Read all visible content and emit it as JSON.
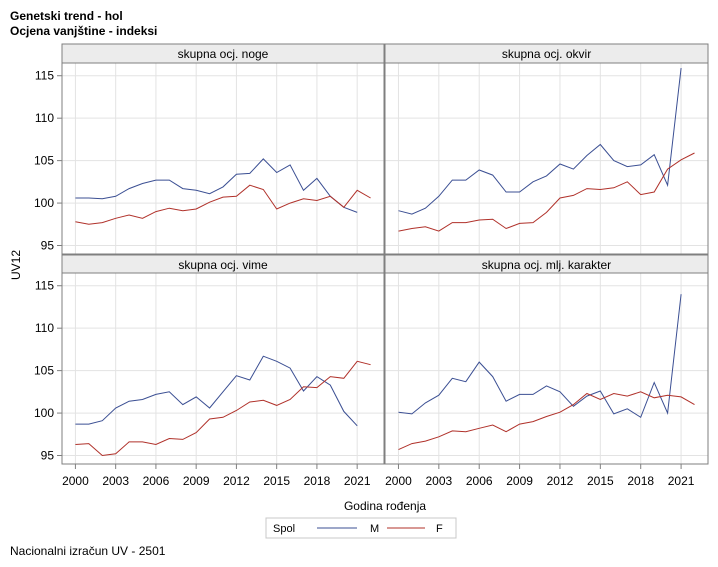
{
  "title_line1": "Genetski trend - hol",
  "title_line2": "Ocjena vanjštine - indeksi",
  "footnote": "Nacionalni izračun UV - 2501",
  "colors": {
    "M": "#3b4f93",
    "F": "#b0312a",
    "frame": "#7f7f7f",
    "grid": "#e3e3e3",
    "header_bg": "#ececec"
  },
  "chart_data": {
    "type": "line",
    "layout": "2x2 panel",
    "xlabel": "Godina rođenja",
    "ylabel": "UV12",
    "x_ticks": [
      2000,
      2003,
      2006,
      2009,
      2012,
      2015,
      2018,
      2021
    ],
    "y_ticks": [
      95,
      100,
      105,
      110,
      115
    ],
    "xlim": [
      1999,
      2023
    ],
    "ylim": [
      94,
      116.5
    ],
    "grid": true,
    "legend": {
      "title": "Spol",
      "position": "bottom-center",
      "entries": [
        "M",
        "F"
      ]
    },
    "x": [
      2000,
      2001,
      2002,
      2003,
      2004,
      2005,
      2006,
      2007,
      2008,
      2009,
      2010,
      2011,
      2012,
      2013,
      2014,
      2015,
      2016,
      2017,
      2018,
      2019,
      2020,
      2021,
      2022
    ],
    "panels": [
      {
        "title": "skupna ocj. noge",
        "series": [
          {
            "name": "M",
            "values": [
              100.6,
              100.6,
              100.5,
              100.8,
              101.7,
              102.3,
              102.7,
              102.7,
              101.7,
              101.5,
              101.1,
              101.9,
              103.4,
              103.5,
              105.2,
              103.6,
              104.5,
              101.5,
              102.9,
              100.8,
              99.5,
              98.9,
              null
            ]
          },
          {
            "name": "F",
            "values": [
              97.8,
              97.5,
              97.7,
              98.2,
              98.6,
              98.2,
              99.0,
              99.4,
              99.1,
              99.3,
              100.1,
              100.7,
              100.8,
              102.1,
              101.6,
              99.3,
              100.0,
              100.5,
              100.3,
              100.8,
              99.5,
              101.5,
              100.6
            ]
          }
        ]
      },
      {
        "title": "skupna ocj. okvir",
        "series": [
          {
            "name": "M",
            "values": [
              99.1,
              98.7,
              99.4,
              100.8,
              102.7,
              102.7,
              103.9,
              103.3,
              101.3,
              101.3,
              102.5,
              103.2,
              104.6,
              104.0,
              105.6,
              106.9,
              105.0,
              104.3,
              104.5,
              105.7,
              102.1,
              115.9,
              null
            ]
          },
          {
            "name": "F",
            "values": [
              96.7,
              97.0,
              97.2,
              96.7,
              97.7,
              97.7,
              98.0,
              98.1,
              97.0,
              97.6,
              97.7,
              98.9,
              100.6,
              100.9,
              101.7,
              101.6,
              101.8,
              102.5,
              101.0,
              101.3,
              104.0,
              105.1,
              105.9
            ]
          }
        ]
      },
      {
        "title": "skupna ocj. vime",
        "series": [
          {
            "name": "M",
            "values": [
              98.7,
              98.7,
              99.1,
              100.6,
              101.4,
              101.6,
              102.2,
              102.5,
              101.0,
              101.9,
              100.6,
              102.5,
              104.4,
              103.9,
              106.7,
              106.1,
              105.3,
              102.6,
              104.3,
              103.3,
              100.2,
              98.5,
              null
            ]
          },
          {
            "name": "F",
            "values": [
              96.3,
              96.4,
              95.0,
              95.2,
              96.6,
              96.6,
              96.3,
              97.0,
              96.9,
              97.7,
              99.3,
              99.5,
              100.3,
              101.3,
              101.5,
              100.9,
              101.6,
              103.1,
              103.0,
              104.3,
              104.1,
              106.1,
              105.7
            ]
          }
        ]
      },
      {
        "title": "skupna ocj. mlj. karakter",
        "series": [
          {
            "name": "M",
            "values": [
              100.1,
              99.9,
              101.2,
              102.1,
              104.1,
              103.7,
              106.0,
              104.3,
              101.4,
              102.2,
              102.2,
              103.2,
              102.5,
              100.8,
              102.0,
              102.6,
              99.9,
              100.5,
              99.5,
              103.6,
              100.0,
              114.0,
              null
            ]
          },
          {
            "name": "F",
            "values": [
              95.7,
              96.4,
              96.7,
              97.2,
              97.9,
              97.8,
              98.2,
              98.6,
              97.8,
              98.7,
              99.0,
              99.6,
              100.1,
              101.0,
              102.3,
              101.6,
              102.3,
              102.0,
              102.5,
              101.8,
              102.1,
              101.9,
              101.0
            ]
          }
        ]
      }
    ]
  }
}
